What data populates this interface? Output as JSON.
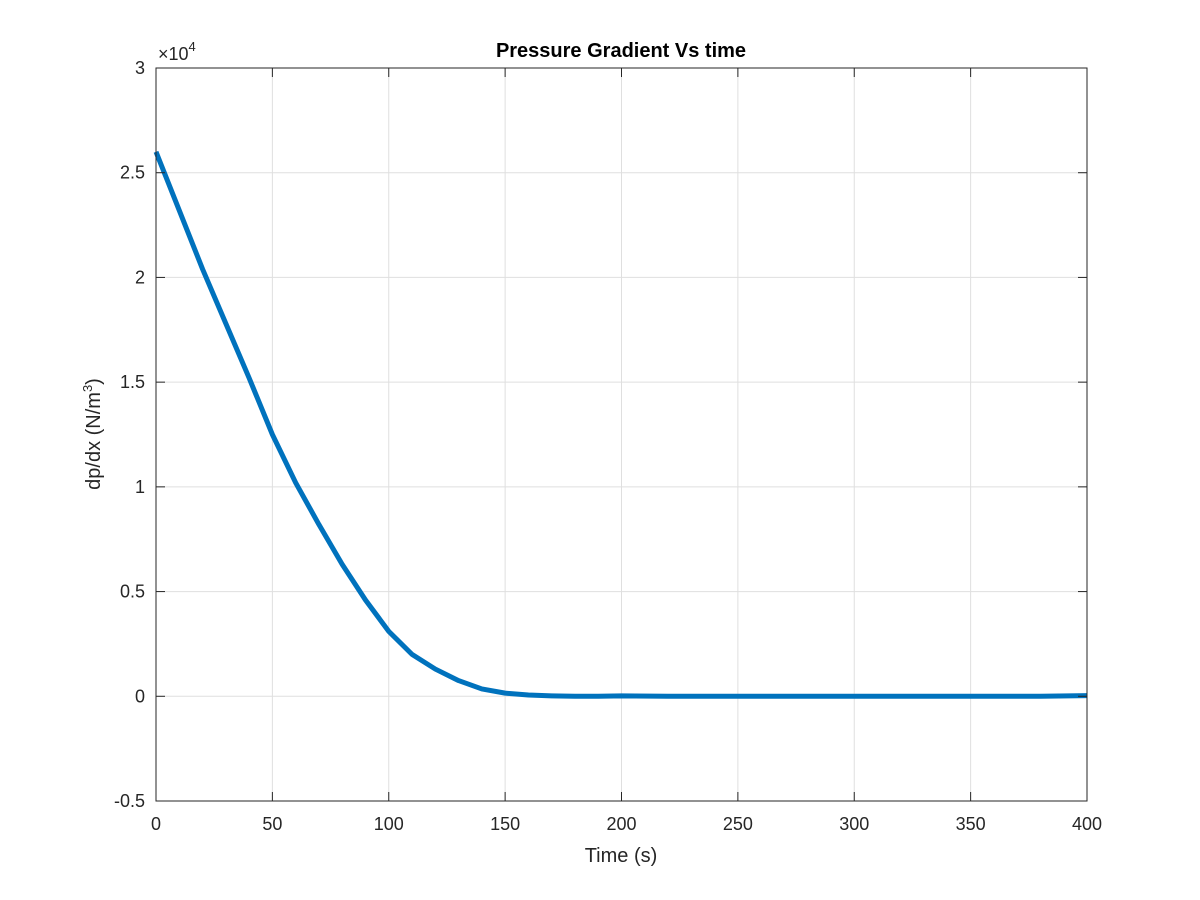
{
  "chart_data": {
    "type": "line",
    "title": "Pressure Gradient Vs time",
    "xlabel": "Time (s)",
    "ylabel_text": "dp/dx (N/m",
    "ylabel_sup": "3",
    "ylabel_close": ")",
    "y_exponent_prefix": "×10",
    "y_exponent_power": "4",
    "xlim": [
      0,
      400
    ],
    "ylim": [
      -0.5,
      3
    ],
    "y_scale_note": "y tick values are scaled by 10^4",
    "xticks": [
      0,
      50,
      100,
      150,
      200,
      250,
      300,
      350,
      400
    ],
    "xtick_labels": [
      "0",
      "50",
      "100",
      "150",
      "200",
      "250",
      "300",
      "350",
      "400"
    ],
    "yticks": [
      -0.5,
      0,
      0.5,
      1,
      1.5,
      2,
      2.5,
      3
    ],
    "ytick_labels": [
      "-0.5",
      "0",
      "0.5",
      "1",
      "1.5",
      "2",
      "2.5",
      "3"
    ],
    "grid": true,
    "line_color": "#0072BD",
    "series": [
      {
        "x": [
          0,
          10,
          20,
          30,
          40,
          50,
          60,
          70,
          80,
          90,
          100,
          110,
          120,
          130,
          140,
          150,
          160,
          170,
          180,
          190,
          200,
          220,
          240,
          260,
          280,
          300,
          320,
          340,
          360,
          380,
          400
        ],
        "y": [
          2.6,
          2.32,
          2.04,
          1.78,
          1.52,
          1.25,
          1.02,
          0.82,
          0.63,
          0.46,
          0.31,
          0.2,
          0.13,
          0.075,
          0.035,
          0.015,
          0.006,
          0.002,
          0.0,
          0.0,
          0.002,
          0.0,
          0.0,
          0.0,
          0.0,
          0.0,
          0.0,
          0.0,
          0.0,
          0.0,
          0.003
        ]
      }
    ]
  },
  "colors": {
    "axis": "#262626",
    "grid": "#dfdfdf",
    "background": "#ffffff"
  }
}
